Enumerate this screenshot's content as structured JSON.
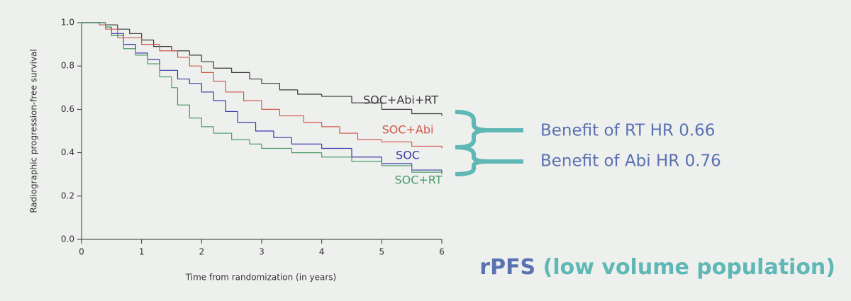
{
  "chart_data": {
    "type": "step",
    "x_label": "Time from randomization (in years)",
    "y_label": "Radiographic progression-free survival",
    "xlim": [
      0,
      6
    ],
    "xticks": [
      0,
      1,
      2,
      3,
      4,
      5,
      6
    ],
    "ylim": [
      0,
      1
    ],
    "yticks": [
      {
        "value": 0,
        "label": "0.0"
      },
      0.2,
      0.4,
      0.6,
      0.8,
      {
        "value": 1,
        "label": "1.0"
      }
    ],
    "series": [
      {
        "name": "SOC+Abi+RT",
        "color": "#3a3a3a",
        "x": [
          0,
          0.4,
          0.6,
          0.8,
          1.0,
          1.2,
          1.5,
          1.8,
          2.0,
          2.2,
          2.5,
          2.8,
          3.0,
          3.3,
          3.6,
          4.0,
          4.5,
          5.0,
          5.5,
          6.0
        ],
        "values": [
          1.0,
          0.99,
          0.97,
          0.95,
          0.92,
          0.89,
          0.87,
          0.85,
          0.82,
          0.79,
          0.77,
          0.74,
          0.72,
          0.69,
          0.67,
          0.66,
          0.63,
          0.6,
          0.58,
          0.57
        ]
      },
      {
        "name": "SOC+Abi",
        "color": "#d0574a",
        "x": [
          0,
          0.3,
          0.4,
          0.6,
          1.0,
          1.3,
          1.6,
          1.8,
          2.0,
          2.2,
          2.4,
          2.7,
          3.0,
          3.3,
          3.7,
          4.0,
          4.3,
          4.6,
          5.0,
          5.5,
          6.0
        ],
        "values": [
          1.0,
          0.99,
          0.97,
          0.93,
          0.9,
          0.87,
          0.84,
          0.8,
          0.77,
          0.73,
          0.68,
          0.64,
          0.6,
          0.57,
          0.54,
          0.52,
          0.49,
          0.46,
          0.45,
          0.43,
          0.42
        ]
      },
      {
        "name": "SOC",
        "color": "#3a3aa8",
        "x": [
          0,
          0.4,
          0.5,
          0.7,
          0.9,
          1.1,
          1.3,
          1.6,
          1.8,
          2.0,
          2.2,
          2.4,
          2.6,
          2.9,
          3.2,
          3.5,
          4.0,
          4.5,
          5.0,
          5.5,
          6.0
        ],
        "values": [
          1.0,
          0.98,
          0.95,
          0.9,
          0.86,
          0.83,
          0.78,
          0.74,
          0.72,
          0.68,
          0.64,
          0.59,
          0.54,
          0.5,
          0.47,
          0.44,
          0.42,
          0.38,
          0.35,
          0.32,
          0.31
        ]
      },
      {
        "name": "SOC+RT",
        "color": "#4a9a6a",
        "x": [
          0,
          0.4,
          0.5,
          0.7,
          0.9,
          1.1,
          1.3,
          1.5,
          1.6,
          1.8,
          2.0,
          2.2,
          2.5,
          2.8,
          3.0,
          3.5,
          4.0,
          4.5,
          5.0,
          5.5,
          6.0
        ],
        "values": [
          1.0,
          0.98,
          0.94,
          0.88,
          0.85,
          0.81,
          0.75,
          0.7,
          0.62,
          0.56,
          0.52,
          0.49,
          0.46,
          0.44,
          0.42,
          0.4,
          0.38,
          0.36,
          0.34,
          0.31,
          0.3
        ]
      }
    ],
    "annotations": [
      "Benefit of RT HR 0.66",
      "Benefit of Abi HR 0.76"
    ],
    "footnote": [
      {
        "text": "rPFS",
        "color": "#5a72b0"
      },
      {
        "text": "(low volume population)",
        "color": "#5fb8b5"
      }
    ]
  }
}
